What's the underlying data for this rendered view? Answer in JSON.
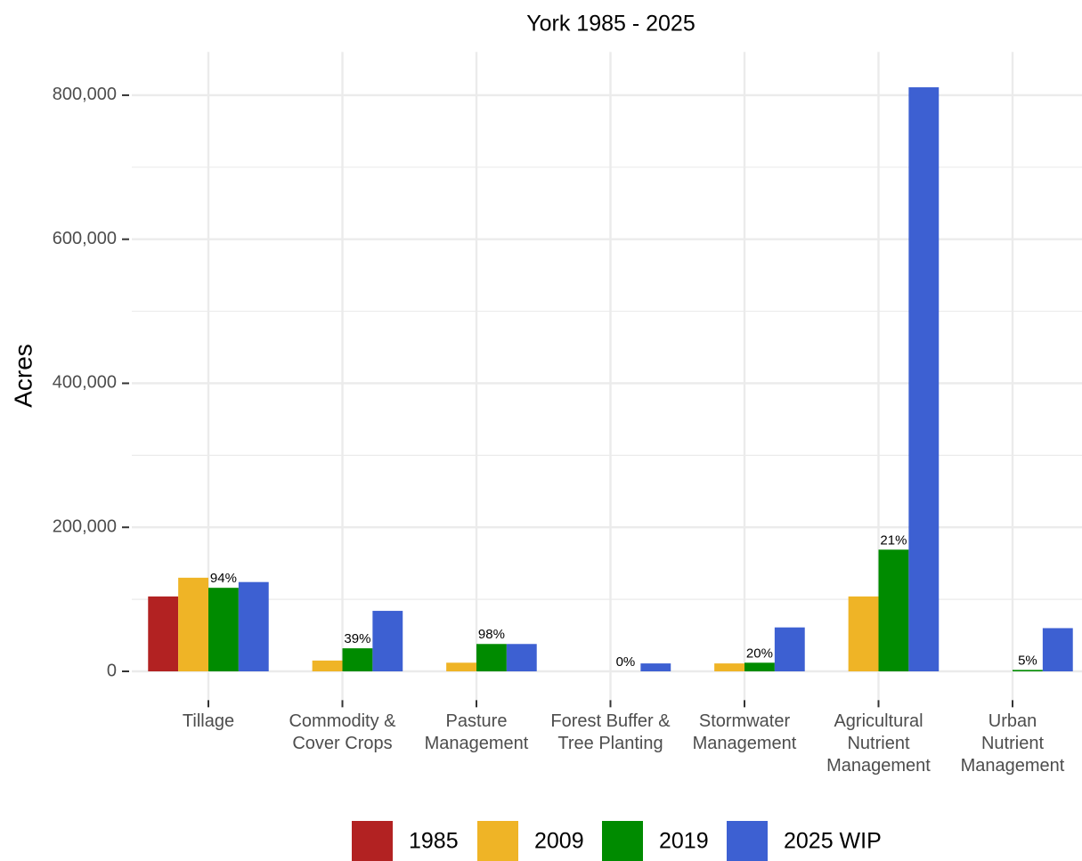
{
  "chart_data": {
    "type": "bar",
    "title": "York 1985 - 2025",
    "y_label": "Acres",
    "categories": [
      "Tillage",
      "Commodity &\nCover Crops",
      "Pasture\nManagement",
      "Forest Buffer &\nTree Planting",
      "Stormwater\nManagement",
      "Agricultural\nNutrient\nManagement",
      "Urban\nNutrient\nManagement"
    ],
    "series": [
      {
        "name": "1985",
        "color": "#b22222",
        "values": [
          104000,
          null,
          null,
          null,
          null,
          null,
          null
        ]
      },
      {
        "name": "2009",
        "color": "#efb426",
        "values": [
          130000,
          15000,
          12000,
          null,
          11000,
          104000,
          null
        ]
      },
      {
        "name": "2019",
        "color": "#008b00",
        "values": [
          116000,
          32000,
          38000,
          0,
          12000,
          169000,
          2000
        ]
      },
      {
        "name": "2025 WIP",
        "color": "#3d60d2",
        "values": [
          124000,
          84000,
          38000,
          11000,
          61000,
          811000,
          60000
        ]
      }
    ],
    "percent_labels": [
      "94%",
      "39%",
      "98%",
      "0%",
      "20%",
      "21%",
      "5%"
    ],
    "ylim": [
      -40000,
      860000
    ],
    "yticks": [
      0,
      {
        "value": 200000,
        "label": "200,000"
      },
      {
        "value": 400000,
        "label": "400,000"
      },
      {
        "value": 600000,
        "label": "600,000"
      },
      {
        "value": 800000,
        "label": "800,000"
      }
    ],
    "minor_yticks": [
      100000,
      300000,
      500000,
      700000
    ],
    "grid": true,
    "legend": "bottom"
  }
}
